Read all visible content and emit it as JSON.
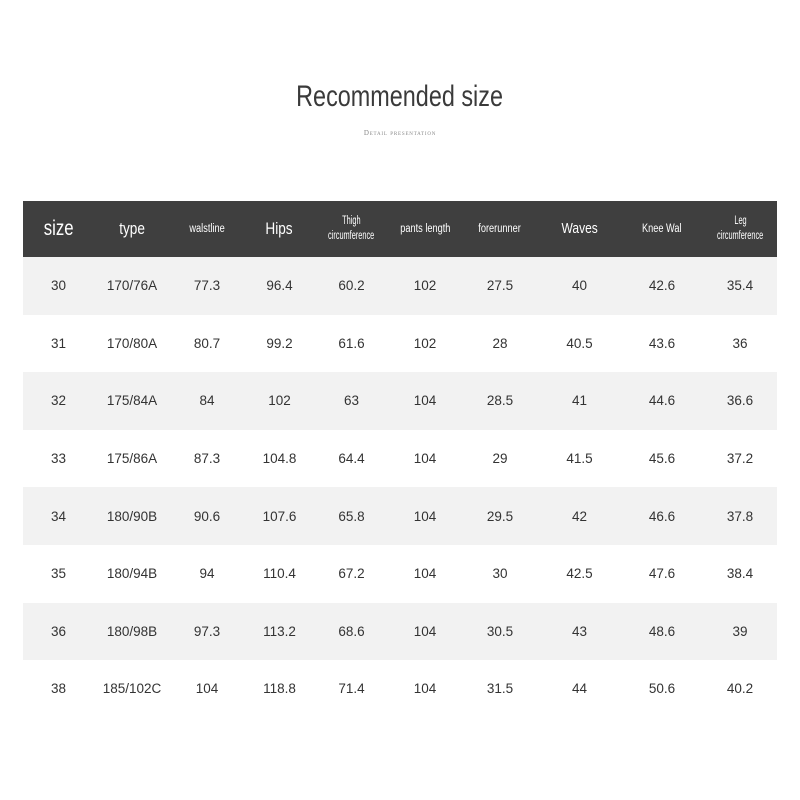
{
  "title": "Recommended size",
  "subtitle": "Detail presentation",
  "headers": [
    "size",
    "type",
    "walstline",
    "Hips",
    "Thigh circumference",
    "pants length",
    "forerunner",
    "Waves",
    "Knee Wal",
    "Leg circumference"
  ],
  "header_lines": {
    "thigh": [
      "Thigh",
      "circumference"
    ],
    "leg": [
      "Leg",
      "circumference"
    ]
  },
  "rows": [
    [
      "30",
      "170/76A",
      "77.3",
      "96.4",
      "60.2",
      "102",
      "27.5",
      "40",
      "42.6",
      "35.4"
    ],
    [
      "31",
      "170/80A",
      "80.7",
      "99.2",
      "61.6",
      "102",
      "28",
      "40.5",
      "43.6",
      "36"
    ],
    [
      "32",
      "175/84A",
      "84",
      "102",
      "63",
      "104",
      "28.5",
      "41",
      "44.6",
      "36.6"
    ],
    [
      "33",
      "175/86A",
      "87.3",
      "104.8",
      "64.4",
      "104",
      "29",
      "41.5",
      "45.6",
      "37.2"
    ],
    [
      "34",
      "180/90B",
      "90.6",
      "107.6",
      "65.8",
      "104",
      "29.5",
      "42",
      "46.6",
      "37.8"
    ],
    [
      "35",
      "180/94B",
      "94",
      "110.4",
      "67.2",
      "104",
      "30",
      "42.5",
      "47.6",
      "38.4"
    ],
    [
      "36",
      "180/98B",
      "97.3",
      "113.2",
      "68.6",
      "104",
      "30.5",
      "43",
      "48.6",
      "39"
    ],
    [
      "38",
      "185/102C",
      "104",
      "118.8",
      "71.4",
      "104",
      "31.5",
      "44",
      "50.6",
      "40.2"
    ]
  ]
}
